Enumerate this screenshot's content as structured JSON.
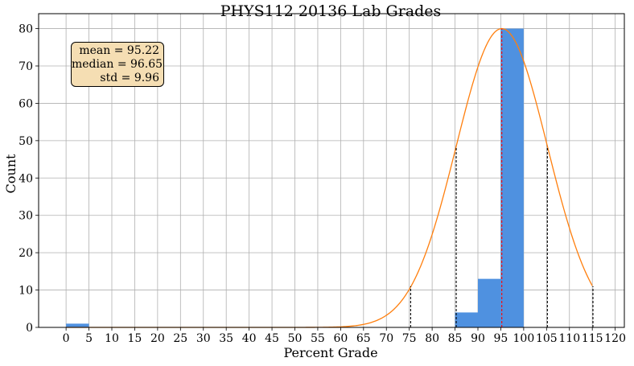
{
  "chart_data": {
    "type": "bar",
    "title": "PHYS112 20136 Lab Grades",
    "xlabel": "Percent Grade",
    "ylabel": "Count",
    "xlim": [
      -6,
      122
    ],
    "ylim": [
      0,
      84
    ],
    "x_ticks": [
      0,
      5,
      10,
      15,
      20,
      25,
      30,
      35,
      40,
      45,
      50,
      55,
      60,
      65,
      70,
      75,
      80,
      85,
      90,
      95,
      100,
      105,
      110,
      115,
      120
    ],
    "y_ticks": [
      0,
      10,
      20,
      30,
      40,
      50,
      60,
      70,
      80
    ],
    "grid": true,
    "histogram": {
      "color": "#4f91e0",
      "bins": [
        {
          "x0": 0,
          "x1": 5,
          "count": 1
        },
        {
          "x0": 85,
          "x1": 90,
          "count": 4
        },
        {
          "x0": 90,
          "x1": 95,
          "count": 13
        },
        {
          "x0": 95,
          "x1": 100,
          "count": 80
        }
      ]
    },
    "fit_curve": {
      "type": "normal",
      "mean": 95.22,
      "std": 9.96,
      "peak": 80,
      "x_range": [
        0,
        115
      ],
      "color": "#ff7f0e"
    },
    "vlines": [
      {
        "x": 75.3,
        "y": 11,
        "color": "#000000",
        "style": "dashed"
      },
      {
        "x": 85.26,
        "y": 48.5,
        "color": "#000000",
        "style": "dashed"
      },
      {
        "x": 95.22,
        "y": 80,
        "color": "#ff0000",
        "style": "dashed"
      },
      {
        "x": 105.18,
        "y": 48.5,
        "color": "#000000",
        "style": "dashed"
      },
      {
        "x": 115.14,
        "y": 11,
        "color": "#000000",
        "style": "dashed"
      }
    ],
    "annotation": {
      "lines": [
        "mean = 95.22",
        "median = 96.65",
        "std = 9.96"
      ],
      "background": "#f5deb3",
      "placement": "top-left"
    }
  }
}
